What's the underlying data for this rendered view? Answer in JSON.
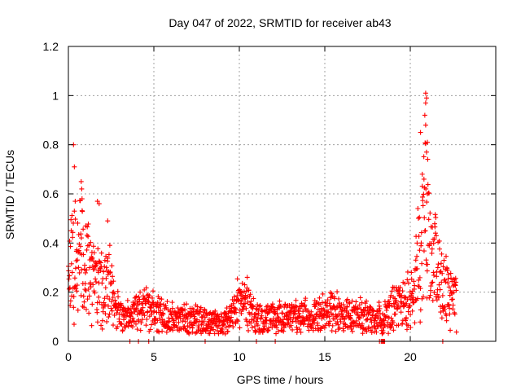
{
  "chart_data": {
    "type": "scatter",
    "title": "Day 047 of 2022, SRMTID for receiver ab43",
    "xlabel": "GPS time / hours",
    "ylabel": "SRMTID / TECUs",
    "xlim": [
      0,
      25
    ],
    "ylim": [
      0,
      1.2
    ],
    "xticks": [
      0,
      5,
      10,
      15,
      20
    ],
    "xtick_labels": [
      "0",
      "5",
      "10",
      "15",
      "20"
    ],
    "yticks": [
      0,
      0.2,
      0.4,
      0.6,
      0.8,
      1.0,
      1.2
    ],
    "ytick_labels": [
      "0",
      "0.2",
      "0.4",
      "0.6",
      "0.8",
      "1",
      "1.2"
    ],
    "grid": true,
    "series": [
      {
        "name": "SRMTID",
        "color": "#ff0000",
        "marker": "plus",
        "profile_hours": [
          0,
          0.3,
          0.6,
          1.0,
          1.5,
          2.0,
          2.4,
          2.7,
          3.0,
          3.5,
          4.0,
          4.5,
          5.0,
          5.5,
          6.0,
          6.5,
          7.0,
          7.5,
          8.0,
          8.5,
          9.0,
          9.5,
          10.0,
          10.5,
          11.0,
          11.5,
          12.0,
          12.5,
          13.0,
          13.5,
          14.0,
          14.5,
          15.0,
          15.5,
          16.0,
          16.5,
          17.0,
          17.5,
          18.0,
          18.5,
          19.0,
          19.5,
          20.0,
          20.3,
          20.6,
          20.9,
          21.2,
          21.5,
          21.8,
          22.1,
          22.4,
          22.7
        ],
        "profile_median_tecu": [
          0.25,
          0.35,
          0.36,
          0.3,
          0.25,
          0.2,
          0.22,
          0.15,
          0.1,
          0.1,
          0.11,
          0.14,
          0.11,
          0.1,
          0.09,
          0.09,
          0.09,
          0.08,
          0.08,
          0.08,
          0.07,
          0.09,
          0.17,
          0.15,
          0.09,
          0.09,
          0.1,
          0.09,
          0.09,
          0.1,
          0.1,
          0.1,
          0.11,
          0.12,
          0.1,
          0.1,
          0.1,
          0.09,
          0.08,
          0.1,
          0.13,
          0.15,
          0.16,
          0.22,
          0.4,
          0.5,
          0.35,
          0.3,
          0.25,
          0.22,
          0.2,
          0.18
        ],
        "outliers": [
          {
            "x": 0.3,
            "y": 0.8
          },
          {
            "x": 0.35,
            "y": 0.71
          },
          {
            "x": 0.4,
            "y": 0.57
          },
          {
            "x": 0.75,
            "y": 0.65
          },
          {
            "x": 0.78,
            "y": 0.62
          },
          {
            "x": 0.8,
            "y": 0.58
          },
          {
            "x": 1.7,
            "y": 0.57
          },
          {
            "x": 1.8,
            "y": 0.56
          },
          {
            "x": 2.3,
            "y": 0.49
          },
          {
            "x": 20.6,
            "y": 0.85
          },
          {
            "x": 20.7,
            "y": 0.68
          },
          {
            "x": 20.9,
            "y": 1.01
          },
          {
            "x": 20.95,
            "y": 0.99
          },
          {
            "x": 20.9,
            "y": 0.97
          },
          {
            "x": 20.85,
            "y": 0.92
          },
          {
            "x": 20.9,
            "y": 0.88
          },
          {
            "x": 21.0,
            "y": 0.81
          },
          {
            "x": 20.95,
            "y": 0.77
          },
          {
            "x": 20.8,
            "y": 0.66
          },
          {
            "x": 21.0,
            "y": 0.6
          }
        ],
        "zero_points_hours": [
          3.6,
          4.1,
          4.7,
          8.0,
          11.0,
          12.1,
          18.2,
          18.3,
          18.35,
          18.4,
          18.45,
          18.5,
          21.9
        ]
      }
    ]
  }
}
